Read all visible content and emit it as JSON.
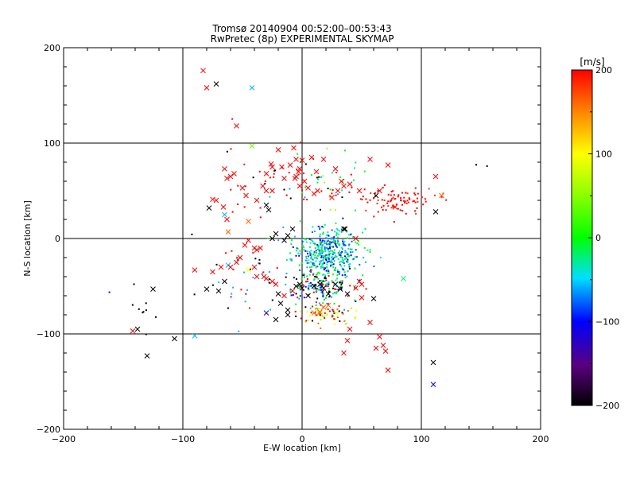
{
  "title_line1": "Tromsø 20140904 00:52:00–00:53:43",
  "title_line2": "RwPretec (8p) EXPERIMENTAL SKYMAP",
  "chart_data": {
    "type": "scatter",
    "xlabel": "E-W location [km]",
    "ylabel": "N-S location [km]",
    "xlim": [
      -200,
      200
    ],
    "ylim": [
      -200,
      200
    ],
    "xticks": [
      "−200",
      "−100",
      "0",
      "100",
      "200"
    ],
    "yticks": [
      "−200",
      "−100",
      "0",
      "100",
      "200"
    ],
    "grid": "lines at x=-100,0,100 and y=-100,0,100",
    "colorbar": {
      "title": "[m/s]",
      "range": [
        -200,
        200
      ],
      "ticks": [
        "200",
        "100",
        "0",
        "−100",
        "−200"
      ],
      "colormap": "rainbow: black(-200) → purple → blue → cyan → green(0) → yellow(100) → orange → red(200)"
    },
    "markers": {
      "cross": [
        [
          -83,
          176,
          200
        ],
        [
          -80,
          158,
          200
        ],
        [
          -72,
          162,
          -200
        ],
        [
          -55,
          118,
          200
        ],
        [
          -42,
          158,
          -60
        ],
        [
          -42,
          97,
          40
        ],
        [
          -30,
          68,
          200
        ],
        [
          -26,
          78,
          200
        ],
        [
          -25,
          75,
          200
        ],
        [
          -20,
          93,
          200
        ],
        [
          -15,
          63,
          200
        ],
        [
          -10,
          77,
          200
        ],
        [
          -5,
          65,
          200
        ],
        [
          -5,
          83,
          200
        ],
        [
          -2,
          73,
          200
        ],
        [
          2,
          60,
          200
        ],
        [
          8,
          85,
          200
        ],
        [
          12,
          70,
          200
        ],
        [
          18,
          83,
          200
        ],
        [
          28,
          73,
          200
        ],
        [
          33,
          60,
          200
        ],
        [
          40,
          57,
          200
        ],
        [
          48,
          50,
          200
        ],
        [
          57,
          83,
          200
        ],
        [
          62,
          45,
          -200
        ],
        [
          72,
          77,
          200
        ],
        [
          78,
          33,
          200
        ],
        [
          112,
          65,
          200
        ],
        [
          112,
          28,
          -200
        ],
        [
          117,
          45,
          160
        ],
        [
          -65,
          73,
          200
        ],
        [
          -63,
          63,
          200
        ],
        [
          -60,
          65,
          200
        ],
        [
          -57,
          68,
          200
        ],
        [
          -50,
          53,
          200
        ],
        [
          -47,
          45,
          200
        ],
        [
          -38,
          40,
          200
        ],
        [
          -33,
          55,
          200
        ],
        [
          -30,
          50,
          200
        ],
        [
          -78,
          32,
          -200
        ],
        [
          -72,
          40,
          200
        ],
        [
          -65,
          25,
          -60
        ],
        [
          -63,
          20,
          200
        ],
        [
          -62,
          7,
          160
        ],
        [
          -45,
          18,
          160
        ],
        [
          -48,
          -7,
          200
        ],
        [
          -45,
          -2,
          200
        ],
        [
          -40,
          -10,
          200
        ],
        [
          -38,
          -12,
          200
        ],
        [
          -35,
          -10,
          200
        ],
        [
          -25,
          0,
          -200
        ],
        [
          -22,
          5,
          -200
        ],
        [
          -15,
          -2,
          -200
        ],
        [
          -12,
          3,
          -200
        ],
        [
          -8,
          10,
          -200
        ],
        [
          -28,
          30,
          -200
        ],
        [
          35,
          10,
          -200
        ],
        [
          -90,
          -33,
          200
        ],
        [
          -75,
          -35,
          200
        ],
        [
          -65,
          -45,
          -200
        ],
        [
          -62,
          -28,
          -60
        ],
        [
          -55,
          -25,
          200
        ],
        [
          -52,
          -20,
          200
        ],
        [
          -45,
          -33,
          100
        ],
        [
          -38,
          -40,
          200
        ],
        [
          -32,
          -40,
          200
        ],
        [
          -30,
          -42,
          200
        ],
        [
          -25,
          -45,
          200
        ],
        [
          -22,
          -48,
          200
        ],
        [
          -20,
          -58,
          -200
        ],
        [
          -15,
          -60,
          200
        ],
        [
          -12,
          -75,
          -200
        ],
        [
          -18,
          -68,
          -200
        ],
        [
          -8,
          -55,
          200
        ],
        [
          -5,
          -50,
          -200
        ],
        [
          -2,
          -48,
          -200
        ],
        [
          0,
          -52,
          -200
        ],
        [
          5,
          -60,
          -200
        ],
        [
          10,
          -50,
          -200
        ],
        [
          15,
          -48,
          -200
        ],
        [
          18,
          -52,
          -200
        ],
        [
          22,
          -58,
          -200
        ],
        [
          28,
          -48,
          -200
        ],
        [
          32,
          -53,
          -200
        ],
        [
          38,
          -58,
          -200
        ],
        [
          45,
          -52,
          200
        ],
        [
          48,
          -45,
          200
        ],
        [
          50,
          -48,
          200
        ],
        [
          60,
          -63,
          -200
        ],
        [
          50,
          -62,
          200
        ],
        [
          85,
          -42,
          -20
        ],
        [
          -12,
          -80,
          -200
        ],
        [
          -22,
          -85,
          -200
        ],
        [
          -30,
          -78,
          -120
        ],
        [
          10,
          -78,
          160
        ],
        [
          15,
          -77,
          160
        ],
        [
          18,
          -72,
          160
        ],
        [
          22,
          -70,
          160
        ],
        [
          40,
          -95,
          200
        ],
        [
          38,
          -107,
          200
        ],
        [
          35,
          -120,
          200
        ],
        [
          57,
          -88,
          200
        ],
        [
          62,
          -115,
          200
        ],
        [
          65,
          -103,
          200
        ],
        [
          68,
          -112,
          200
        ],
        [
          70,
          -118,
          200
        ],
        [
          72,
          -138,
          200
        ],
        [
          -142,
          -97,
          200
        ],
        [
          -138,
          -95,
          -200
        ],
        [
          -125,
          -53,
          -200
        ],
        [
          -107,
          -105,
          -200
        ],
        [
          -130,
          -123,
          -200
        ],
        [
          -90,
          -102,
          -60
        ],
        [
          -80,
          -53,
          -200
        ],
        [
          110,
          -130,
          -200
        ],
        [
          110,
          -153,
          -100
        ],
        [
          45,
          0,
          200
        ],
        [
          36,
          10,
          -200
        ],
        [
          -2,
          55,
          200
        ],
        [
          5,
          53,
          200
        ],
        [
          -30,
          35,
          -200
        ],
        [
          -25,
          50,
          200
        ],
        [
          -17,
          75,
          200
        ],
        [
          -7,
          95,
          200
        ],
        [
          -6,
          63,
          200
        ],
        [
          -3,
          70,
          200
        ],
        [
          0,
          82,
          200
        ],
        [
          10,
          47,
          200
        ],
        [
          13,
          50,
          200
        ],
        [
          25,
          43,
          200
        ],
        [
          30,
          50,
          200
        ],
        [
          35,
          55,
          200
        ],
        [
          65,
          50,
          200
        ],
        [
          -75,
          41,
          200
        ],
        [
          -66,
          33,
          200
        ],
        [
          -60,
          -30,
          200
        ],
        [
          -68,
          -30,
          200
        ],
        [
          -40,
          -30,
          200
        ],
        [
          -70,
          -55,
          -200
        ]
      ],
      "dot_clusters": [
        {
          "cx": 20,
          "cy": -15,
          "sx": 14,
          "sy": 13,
          "n": 420,
          "colors": [
            -60,
            -40,
            -20,
            0,
            -80,
            -100
          ]
        },
        {
          "cx": 15,
          "cy": -50,
          "sx": 14,
          "sy": 10,
          "n": 160,
          "colors": [
            -100,
            -60,
            -200,
            200,
            0,
            -20
          ]
        },
        {
          "cx": 20,
          "cy": -80,
          "sx": 14,
          "sy": 5,
          "n": 70,
          "colors": [
            60,
            100,
            160,
            -200,
            200
          ]
        },
        {
          "cx": 80,
          "cy": 40,
          "sx": 18,
          "sy": 7,
          "n": 90,
          "colors": [
            200,
            200,
            200,
            180
          ]
        },
        {
          "cx": -20,
          "cy": 62,
          "sx": 25,
          "sy": 18,
          "n": 40,
          "colors": [
            200,
            200,
            -200
          ]
        },
        {
          "cx": 20,
          "cy": 55,
          "sx": 15,
          "sy": 15,
          "n": 40,
          "colors": [
            0,
            -60,
            60,
            200,
            -20
          ]
        },
        {
          "cx": -40,
          "cy": -45,
          "sx": 25,
          "sy": 20,
          "n": 40,
          "colors": [
            -200,
            200,
            -60
          ]
        },
        {
          "cx": -135,
          "cy": -70,
          "sx": 8,
          "sy": 15,
          "n": 10,
          "colors": [
            -200,
            -100
          ]
        },
        {
          "cx": 150,
          "cy": 77,
          "sx": 5,
          "sy": 2,
          "n": 2,
          "colors": [
            -200
          ]
        }
      ]
    }
  }
}
